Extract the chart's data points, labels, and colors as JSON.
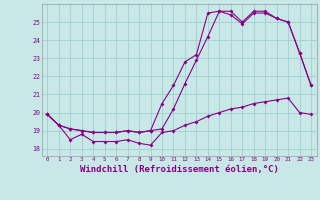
{
  "background_color": "#c8e8e8",
  "line_color": "#880088",
  "grid_color": "#a0cece",
  "xlabel": "Windchill (Refroidissement éolien,°C)",
  "xlabel_fontsize": 6.5,
  "ylabel_ticks": [
    18,
    19,
    20,
    21,
    22,
    23,
    24,
    25
  ],
  "xlim": [
    -0.5,
    23.5
  ],
  "ylim": [
    17.6,
    26.0
  ],
  "xtick_labels": [
    "0",
    "1",
    "2",
    "3",
    "4",
    "5",
    "6",
    "7",
    "8",
    "9",
    "10",
    "11",
    "12",
    "13",
    "14",
    "15",
    "16",
    "17",
    "18",
    "19",
    "20",
    "21",
    "22",
    "23"
  ],
  "series1_x": [
    0,
    1,
    2,
    3,
    4,
    5,
    6,
    7,
    8,
    9,
    10,
    11,
    12,
    13,
    14,
    15,
    16,
    17,
    18,
    19,
    20,
    21,
    22,
    23
  ],
  "series1_y": [
    19.9,
    19.3,
    18.5,
    18.8,
    18.4,
    18.4,
    18.4,
    18.5,
    18.3,
    18.2,
    18.9,
    19.0,
    19.3,
    19.5,
    19.8,
    20.0,
    20.2,
    20.3,
    20.5,
    20.6,
    20.7,
    20.8,
    20.0,
    19.9
  ],
  "series2_x": [
    0,
    1,
    2,
    3,
    4,
    5,
    6,
    7,
    8,
    9,
    10,
    11,
    12,
    13,
    14,
    15,
    16,
    17,
    18,
    19,
    20,
    21,
    22,
    23
  ],
  "series2_y": [
    19.9,
    19.3,
    19.1,
    19.0,
    18.9,
    18.9,
    18.9,
    19.0,
    18.9,
    19.0,
    20.5,
    21.5,
    22.8,
    23.2,
    25.5,
    25.6,
    25.4,
    24.9,
    25.5,
    25.5,
    25.2,
    25.0,
    23.3,
    21.5
  ],
  "series3_x": [
    0,
    1,
    2,
    3,
    4,
    5,
    6,
    7,
    8,
    9,
    10,
    11,
    12,
    13,
    14,
    15,
    16,
    17,
    18,
    19,
    20,
    21,
    22,
    23
  ],
  "series3_y": [
    19.9,
    19.3,
    19.1,
    19.0,
    18.9,
    18.9,
    18.9,
    19.0,
    18.9,
    19.0,
    19.1,
    20.2,
    21.6,
    22.9,
    24.2,
    25.6,
    25.6,
    25.0,
    25.6,
    25.6,
    25.2,
    25.0,
    23.3,
    21.5
  ]
}
